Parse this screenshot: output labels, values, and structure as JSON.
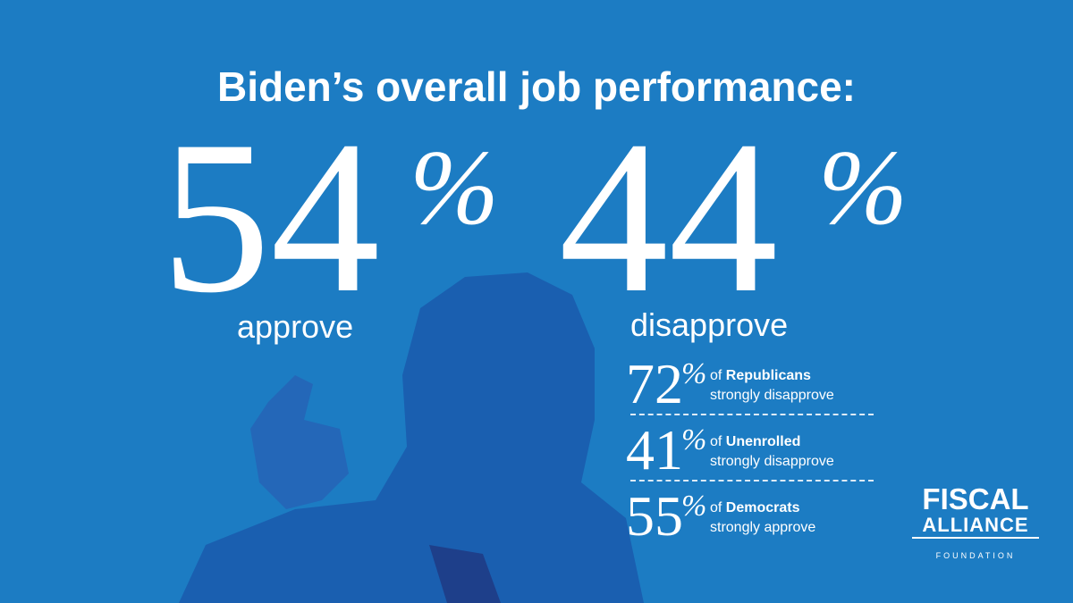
{
  "header": {
    "title": "Biden’s overall job performance:"
  },
  "main_stats": [
    {
      "value": "54",
      "sign": "%",
      "label": "approve"
    },
    {
      "value": "44",
      "sign": "%",
      "label": "disapprove"
    }
  ],
  "sub_stats": [
    {
      "value": "72",
      "sign": "%",
      "prefix": "of",
      "group": "Republicans",
      "note": "strongly disapprove"
    },
    {
      "value": "41",
      "sign": "%",
      "prefix": "of",
      "group": "Unenrolled",
      "note": "strongly disapprove"
    },
    {
      "value": "55",
      "sign": "%",
      "prefix": "of",
      "group": "Democrats",
      "note": "strongly approve"
    }
  ],
  "logo": {
    "line1": "FISCAL",
    "line2": "ALLIANCE",
    "line3": "FOUNDATION"
  }
}
